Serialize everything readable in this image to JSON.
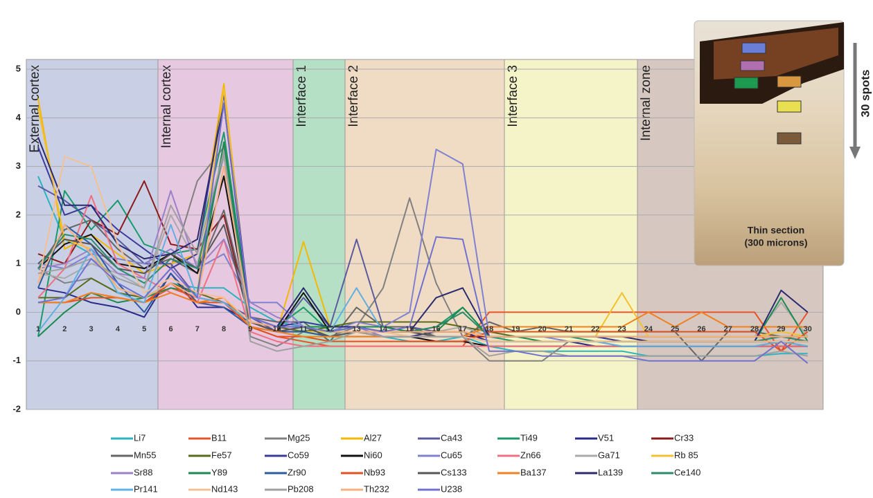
{
  "chart_data": {
    "type": "line",
    "categories": [
      "1",
      "2",
      "3",
      "4",
      "5",
      "6",
      "7",
      "8",
      "9",
      "10",
      "11",
      "12",
      "13",
      "14",
      "15",
      "16",
      "17",
      "18",
      "19",
      "20",
      "21",
      "22",
      "23",
      "24",
      "25",
      "26",
      "27",
      "28",
      "29",
      "30"
    ],
    "ylim": [
      -2,
      5.2
    ],
    "yticks": [
      -2,
      -1,
      0,
      1,
      2,
      3,
      4,
      5
    ],
    "grid": true,
    "annotations": [
      "External cortex",
      "Internal cortex",
      "Interface 1",
      "Interface 2",
      "Interface 3",
      "Internal zone"
    ],
    "inset": {
      "caption": [
        "Thin section",
        "(300 microns)"
      ],
      "arrow_label": "30 spots"
    },
    "series": [
      {
        "name": "Li7",
        "color": "#2ab3c0",
        "values": [
          2.8,
          1.5,
          1.2,
          0.5,
          0.3,
          0.6,
          0.5,
          0.5,
          0.1,
          -0.2,
          -0.3,
          -0.4,
          -0.3,
          -0.5,
          -0.6,
          -0.6,
          -0.5,
          -0.7,
          -0.8,
          -0.8,
          -0.8,
          -0.8,
          -0.8,
          -0.9,
          -0.9,
          -0.9,
          -0.9,
          -0.9,
          -0.85,
          -0.85
        ]
      },
      {
        "name": "B11",
        "color": "#e8532a",
        "values": [
          0.2,
          0.2,
          0.4,
          0.3,
          0.2,
          0.5,
          0.3,
          0.2,
          -0.3,
          -0.5,
          -0.6,
          -0.7,
          -0.7,
          -0.7,
          -0.7,
          -0.7,
          -0.7,
          0,
          0,
          0,
          0,
          0,
          0,
          0,
          0,
          0,
          0,
          0,
          -0.8,
          0
        ]
      },
      {
        "name": "Mg25",
        "color": "#808080",
        "values": [
          0.9,
          0.6,
          0.7,
          0.4,
          0.3,
          0.9,
          2.7,
          3.4,
          -0.5,
          -0.7,
          -0.4,
          -0.5,
          -0.3,
          0.5,
          2.35,
          0.6,
          -0.5,
          -1.0,
          -1.0,
          -1.0,
          -0.6,
          -0.7,
          -0.7,
          -0.7,
          -0.7,
          -0.7,
          -0.7,
          -0.7,
          -0.7,
          -0.7
        ]
      },
      {
        "name": "Al27",
        "color": "#f5b800",
        "values": [
          4.4,
          1.3,
          1.6,
          1.2,
          0.8,
          1.0,
          1.2,
          4.7,
          -0.2,
          -0.4,
          1.45,
          -0.3,
          -0.3,
          -0.4,
          -0.4,
          -0.4,
          -0.4,
          -0.5,
          -0.5,
          -0.5,
          -0.5,
          -0.5,
          -0.5,
          -0.5,
          -0.5,
          -0.5,
          -0.5,
          -0.5,
          -0.5,
          -0.5
        ]
      },
      {
        "name": "Ca43",
        "color": "#5a5aa0",
        "values": [
          2.6,
          2.3,
          1.9,
          1.5,
          1.0,
          1.0,
          0.3,
          0.2,
          -0.1,
          -0.4,
          0.3,
          -0.3,
          1.5,
          -0.3,
          -0.3,
          -0.4,
          -0.4,
          -0.5,
          -0.5,
          -0.5,
          -0.5,
          -0.5,
          -0.6,
          -0.6,
          -0.6,
          -0.6,
          -0.6,
          -0.6,
          -0.5,
          -0.6
        ]
      },
      {
        "name": "Ti49",
        "color": "#1a9a6a",
        "values": [
          -0.5,
          2.5,
          1.7,
          2.3,
          1.4,
          1.2,
          1.3,
          3.7,
          -0.2,
          -0.3,
          0.1,
          -0.4,
          -0.3,
          -0.4,
          -0.4,
          -0.3,
          0.1,
          -0.5,
          -0.6,
          -0.6,
          -0.6,
          -0.6,
          -0.7,
          -0.7,
          -0.7,
          -0.7,
          -0.7,
          -0.7,
          -0.6,
          -0.7
        ]
      },
      {
        "name": "V51",
        "color": "#2a2a8a",
        "values": [
          0.5,
          0.4,
          0.2,
          0.1,
          -0.1,
          0.8,
          0.1,
          0.1,
          -0.2,
          -0.4,
          -0.3,
          -0.4,
          -0.4,
          -0.5,
          -0.5,
          -0.4,
          -0.4,
          -0.6,
          -0.6,
          -0.6,
          -0.6,
          -0.7,
          -0.7,
          -0.7,
          -0.7,
          -0.7,
          -0.7,
          -0.7,
          -0.7,
          -0.7
        ]
      },
      {
        "name": "Cr33",
        "color": "#8b1a1a",
        "values": [
          1.2,
          1.0,
          1.9,
          1.6,
          2.7,
          1.4,
          1.3,
          2.0,
          -0.2,
          -0.4,
          -0.3,
          -0.4,
          -0.4,
          -0.4,
          -0.4,
          -0.5,
          -0.5,
          -0.5,
          -0.5,
          -0.5,
          -0.5,
          -0.5,
          -0.5,
          -0.5,
          -0.5,
          -0.5,
          -0.5,
          -0.5,
          -0.5,
          -0.5
        ]
      },
      {
        "name": "Mn55",
        "color": "#666666",
        "values": [
          0.9,
          1.7,
          1.9,
          1.3,
          0.9,
          1.1,
          0.8,
          2.1,
          -0.1,
          -0.2,
          -0.2,
          -0.6,
          0.1,
          -0.3,
          -0.3,
          -0.5,
          -0.5,
          -0.2,
          -0.4,
          -0.3,
          -0.4,
          -0.4,
          -0.4,
          -0.4,
          -0.4,
          -1.0,
          -0.4,
          -0.4,
          -0.5,
          -0.5
        ]
      },
      {
        "name": "Fe57",
        "color": "#5a6a1a",
        "values": [
          0.3,
          0.3,
          0.7,
          0.4,
          0.3,
          0.6,
          0.4,
          0.2,
          -0.2,
          -0.3,
          -0.4,
          -0.3,
          -0.2,
          -0.2,
          -0.2,
          -0.2,
          -0.3,
          -0.4,
          -0.5,
          -0.5,
          -0.5,
          -0.5,
          -0.5,
          -0.5,
          -0.5,
          -0.5,
          -0.5,
          -0.5,
          -0.5,
          -0.5
        ]
      },
      {
        "name": "Co59",
        "color": "#3a3a9a",
        "values": [
          3.4,
          2.0,
          2.2,
          1.7,
          1.3,
          0.9,
          1.2,
          4.5,
          -0.1,
          -0.3,
          -0.2,
          -0.3,
          -0.3,
          -0.3,
          -0.4,
          -0.4,
          -0.4,
          -0.5,
          -0.5,
          -0.5,
          -0.5,
          -0.5,
          -0.6,
          -0.6,
          -0.6,
          -0.6,
          -0.6,
          -0.6,
          -0.6,
          -0.6
        ]
      },
      {
        "name": "Ni60",
        "color": "#111111",
        "values": [
          0.9,
          1.4,
          1.6,
          1.0,
          0.9,
          1.2,
          0.8,
          2.8,
          -0.3,
          -0.4,
          0.4,
          -0.4,
          -0.4,
          -0.5,
          -0.5,
          -0.6,
          -0.6,
          -0.7,
          -0.7,
          -0.7,
          -0.7,
          -0.7,
          -0.7,
          -0.7,
          -0.7,
          -0.7,
          -0.7,
          -0.7,
          -0.7,
          -0.7
        ]
      },
      {
        "name": "Cu65",
        "color": "#8080d0",
        "values": [
          1.0,
          0.9,
          1.2,
          1.1,
          1.0,
          1.3,
          0.9,
          1.2,
          0.2,
          0.2,
          -0.3,
          -0.4,
          -0.2,
          -0.3,
          0.0,
          3.35,
          3.05,
          -0.5,
          -0.5,
          -0.5,
          -0.6,
          -0.6,
          -0.6,
          -0.6,
          -0.6,
          -0.6,
          -0.6,
          -0.6,
          -0.6,
          -0.6
        ]
      },
      {
        "name": "Zn66",
        "color": "#f07080",
        "values": [
          0.3,
          0.9,
          2.4,
          1.0,
          0.7,
          0.4,
          0.2,
          1.5,
          -0.4,
          -0.6,
          -0.7,
          -0.7,
          -0.7,
          -0.7,
          -0.7,
          -0.7,
          -0.7,
          -0.7,
          -0.7,
          -0.7,
          -0.7,
          -0.7,
          -0.7,
          -0.7,
          -0.7,
          -0.7,
          -0.7,
          -0.7,
          -0.7,
          -0.7
        ]
      },
      {
        "name": "Ga71",
        "color": "#aaaaaa",
        "values": [
          0.8,
          0.7,
          1.0,
          0.8,
          0.5,
          2.0,
          1.0,
          3.2,
          -0.3,
          -0.4,
          -0.3,
          -0.4,
          -0.3,
          -0.4,
          -0.4,
          -0.4,
          -0.3,
          -0.5,
          -0.5,
          -0.5,
          -0.5,
          -0.5,
          -0.5,
          -0.5,
          -0.5,
          -0.5,
          -0.5,
          -0.5,
          0.2,
          -0.5
        ]
      },
      {
        "name": "Rb 85",
        "color": "#f5c030",
        "values": [
          4.2,
          1.5,
          1.3,
          0.5,
          0.3,
          0.5,
          0.4,
          4.6,
          -0.3,
          -0.4,
          -0.4,
          -0.4,
          -0.4,
          -0.4,
          -0.4,
          -0.4,
          -0.4,
          -0.5,
          -0.5,
          -0.5,
          -0.5,
          -0.5,
          0.4,
          -0.5,
          -0.5,
          -0.5,
          -0.5,
          -0.5,
          -0.4,
          -0.5
        ]
      },
      {
        "name": "Sr88",
        "color": "#9a80c8",
        "values": [
          0.9,
          1.0,
          1.3,
          0.8,
          0.7,
          2.5,
          0.9,
          1.5,
          0.2,
          -0.1,
          -0.3,
          -0.4,
          -0.3,
          -0.5,
          -0.5,
          -0.5,
          -0.5,
          -0.6,
          -0.6,
          -0.6,
          -0.6,
          -0.6,
          -0.7,
          -0.7,
          -0.7,
          -0.7,
          -0.7,
          -0.7,
          -0.6,
          -0.7
        ]
      },
      {
        "name": "Y89",
        "color": "#1a8a50",
        "values": [
          -0.5,
          0.0,
          0.4,
          0.2,
          0.3,
          0.5,
          0.4,
          3.5,
          -0.2,
          -0.3,
          -0.3,
          -0.3,
          -0.3,
          -0.3,
          -0.4,
          -0.4,
          0.1,
          -0.5,
          -0.5,
          -0.6,
          -0.6,
          -0.6,
          -0.6,
          -0.6,
          -0.6,
          -0.6,
          -0.6,
          -0.6,
          0.3,
          -0.6
        ]
      },
      {
        "name": "Zr90",
        "color": "#2a5aa0",
        "values": [
          0.5,
          1.8,
          1.4,
          0.6,
          0.0,
          0.8,
          0.2,
          0.1,
          -0.3,
          -0.4,
          -0.4,
          -0.5,
          -0.5,
          -0.5,
          -0.5,
          -0.5,
          -0.5,
          -0.6,
          -0.6,
          -0.6,
          -0.6,
          -0.6,
          -0.6,
          -0.6,
          -0.6,
          -0.6,
          -0.6,
          -0.6,
          -0.6,
          -0.6
        ]
      },
      {
        "name": "Nb93",
        "color": "#e05020",
        "values": [
          0.2,
          0.2,
          0.3,
          0.3,
          0.2,
          0.6,
          0.2,
          0.2,
          -0.3,
          -0.5,
          -0.5,
          -0.6,
          -0.6,
          -0.6,
          -0.6,
          -0.6,
          -0.6,
          -0.4,
          -0.4,
          -0.4,
          -0.4,
          -0.4,
          -0.4,
          -0.4,
          -0.4,
          -0.4,
          -0.4,
          -0.4,
          -0.8,
          -0.4
        ]
      },
      {
        "name": "Cs133",
        "color": "#555555",
        "values": [
          1.0,
          1.5,
          1.4,
          0.9,
          0.8,
          1.2,
          0.9,
          1.8,
          -0.2,
          -0.4,
          -0.3,
          -0.5,
          -0.4,
          -0.4,
          -0.4,
          -0.5,
          -0.5,
          -0.6,
          -0.6,
          -0.6,
          -0.6,
          -0.6,
          -0.6,
          -0.6,
          -0.6,
          -0.6,
          -0.6,
          -0.6,
          -0.6,
          -0.6
        ]
      },
      {
        "name": "Ba137",
        "color": "#f08020",
        "values": [
          0.2,
          0.2,
          0.4,
          0.3,
          0.2,
          0.4,
          0.2,
          0.3,
          -0.3,
          -0.4,
          -0.5,
          -0.5,
          -0.5,
          -0.5,
          -0.5,
          -0.5,
          -0.5,
          -0.3,
          -0.3,
          -0.3,
          -0.3,
          -0.3,
          -0.3,
          0.0,
          -0.3,
          0.0,
          -0.3,
          -0.3,
          -0.3,
          -0.3
        ]
      },
      {
        "name": "La139",
        "color": "#2a2a70",
        "values": [
          3.6,
          2.2,
          2.2,
          1.4,
          1.1,
          1.2,
          1.5,
          4.3,
          -0.2,
          -0.3,
          0.5,
          -0.3,
          -0.3,
          -0.4,
          -0.4,
          0.3,
          0.5,
          -0.5,
          -0.5,
          -0.5,
          -0.5,
          -0.5,
          -0.5,
          -0.6,
          -0.6,
          -0.6,
          -0.6,
          -0.6,
          0.45,
          0.0
        ]
      },
      {
        "name": "Ce140",
        "color": "#2a8a6a",
        "values": [
          0.9,
          1.6,
          1.5,
          0.9,
          0.6,
          1.1,
          0.9,
          3.3,
          -0.2,
          -0.3,
          -0.3,
          -0.4,
          -0.3,
          -0.4,
          -0.4,
          -0.3,
          0.0,
          -0.5,
          -0.5,
          -0.5,
          -0.5,
          -0.6,
          -0.6,
          -0.6,
          -0.6,
          -0.6,
          -0.6,
          -0.6,
          -0.5,
          -0.6
        ]
      },
      {
        "name": "Pr141",
        "color": "#60b0e0",
        "values": [
          -0.4,
          0.3,
          1.3,
          0.4,
          0.2,
          1.8,
          0.3,
          0.2,
          -0.2,
          -0.3,
          -0.3,
          -0.4,
          0.5,
          -0.4,
          -0.5,
          -0.5,
          -0.5,
          -0.6,
          -0.6,
          -0.6,
          -0.6,
          -0.6,
          -0.7,
          -0.7,
          -0.7,
          -0.7,
          -0.7,
          -0.7,
          -0.6,
          -0.7
        ]
      },
      {
        "name": "Nd143",
        "color": "#f5c090",
        "values": [
          0.6,
          3.2,
          3.0,
          1.4,
          0.4,
          0.7,
          0.4,
          0.3,
          -0.2,
          -0.3,
          -0.3,
          -0.4,
          -0.4,
          -0.4,
          -0.5,
          -0.5,
          -0.5,
          -0.6,
          -0.6,
          -0.6,
          -0.6,
          -0.6,
          -0.6,
          -0.6,
          -0.6,
          -0.6,
          -0.6,
          -0.6,
          -0.6,
          -0.6
        ]
      },
      {
        "name": "Pb208",
        "color": "#a0a0a0",
        "values": [
          0.8,
          0.9,
          1.1,
          0.7,
          0.5,
          2.2,
          1.2,
          3.3,
          -0.6,
          -0.8,
          -0.7,
          -0.6,
          -0.4,
          -0.5,
          -0.5,
          -0.5,
          -0.5,
          -0.9,
          -0.8,
          -0.8,
          -0.9,
          -0.9,
          -0.9,
          -0.9,
          -0.9,
          -0.9,
          -0.9,
          -0.9,
          -0.8,
          -0.9
        ]
      },
      {
        "name": "Th232",
        "color": "#f5b080",
        "values": [
          0.6,
          1.8,
          1.2,
          0.5,
          0.3,
          0.6,
          0.3,
          3.0,
          -0.2,
          -0.3,
          -0.3,
          -0.4,
          -0.4,
          -0.4,
          -0.4,
          -0.4,
          -0.4,
          -0.5,
          -0.5,
          -0.5,
          -0.5,
          -0.5,
          -0.5,
          -0.5,
          -0.5,
          -0.5,
          -0.5,
          -0.5,
          -0.5,
          -0.5
        ]
      },
      {
        "name": "U238",
        "color": "#7070d0",
        "values": [
          0.2,
          0.3,
          1.1,
          0.6,
          0.3,
          0.9,
          0.3,
          4.3,
          -0.1,
          -0.3,
          -0.3,
          -0.4,
          -0.3,
          -0.4,
          -0.3,
          1.55,
          1.5,
          -0.8,
          -0.8,
          -0.9,
          -0.9,
          -0.9,
          -0.9,
          -1.0,
          -1.0,
          -1.0,
          -1.0,
          -1.0,
          -0.6,
          -1.05
        ]
      }
    ]
  }
}
